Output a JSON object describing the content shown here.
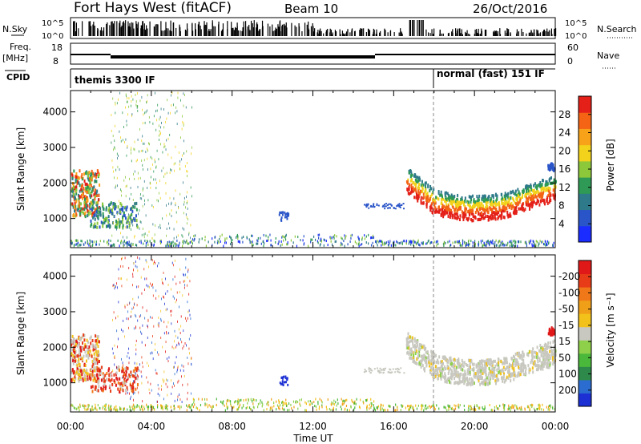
{
  "header": {
    "station": "Fort Hays West (fitACF)",
    "beam": "Beam 10",
    "date": "26/Oct/2016"
  },
  "strips": {
    "nsky_label": "N.Sky",
    "nsky_ticks": [
      "10^5",
      "10^0"
    ],
    "nsearch_label": "N.Search",
    "nsearch_ticks": [
      "10^5",
      "10^0"
    ],
    "freq_label_top": "Freq.",
    "freq_label_unit": "[MHz]",
    "freq_ticks": [
      "18",
      "8"
    ],
    "nave_label": "Nave",
    "nave_ticks": [
      "60",
      "0"
    ],
    "cpid_label": "CPID",
    "cpid_segments": [
      {
        "name": "themis 3300 IF",
        "start_hour": 0
      },
      {
        "name": "normal (fast) 151 IF",
        "start_hour": 18
      }
    ]
  },
  "chart_data": [
    {
      "type": "heatmap",
      "title": "",
      "ylabel": "Slant Range [km]",
      "xlabel": "",
      "x_range_hours": [
        0,
        24
      ],
      "ylim": [
        180,
        4600
      ],
      "yticks": [
        1000,
        2000,
        3000,
        4000
      ],
      "xticks": [
        "00:00",
        "04:00",
        "08:00",
        "12:00",
        "16:00",
        "20:00",
        "00:00"
      ],
      "colorbar": {
        "label": "Power [dB]",
        "ticks": [
          "4",
          "8",
          "12",
          "16",
          "20",
          "24",
          "28"
        ],
        "colors": [
          "#1a2cff",
          "#2a55c8",
          "#2f7a8a",
          "#2e9a55",
          "#8cc83a",
          "#f2d21a",
          "#f8a21a",
          "#f46414",
          "#e42018"
        ]
      }
    },
    {
      "type": "heatmap",
      "title": "",
      "ylabel": "Slant Range [km]",
      "xlabel": "Time UT",
      "x_range_hours": [
        0,
        24
      ],
      "ylim": [
        180,
        4600
      ],
      "yticks": [
        1000,
        2000,
        3000,
        4000
      ],
      "xticks": [
        "00:00",
        "04:00",
        "08:00",
        "12:00",
        "16:00",
        "20:00",
        "00:00"
      ],
      "colorbar": {
        "label": "Velocity [m s⁻¹]",
        "ticks": [
          "200",
          "100",
          "50",
          "15",
          "-15",
          "-50",
          "-100",
          "-200"
        ],
        "colors": [
          "#1c30d4",
          "#2a6cd0",
          "#2e8a4a",
          "#4ab83a",
          "#8ed04a",
          "#c8c8c0",
          "#f2c21a",
          "#f0a018",
          "#f07818",
          "#e83c18",
          "#e01818"
        ]
      }
    }
  ]
}
